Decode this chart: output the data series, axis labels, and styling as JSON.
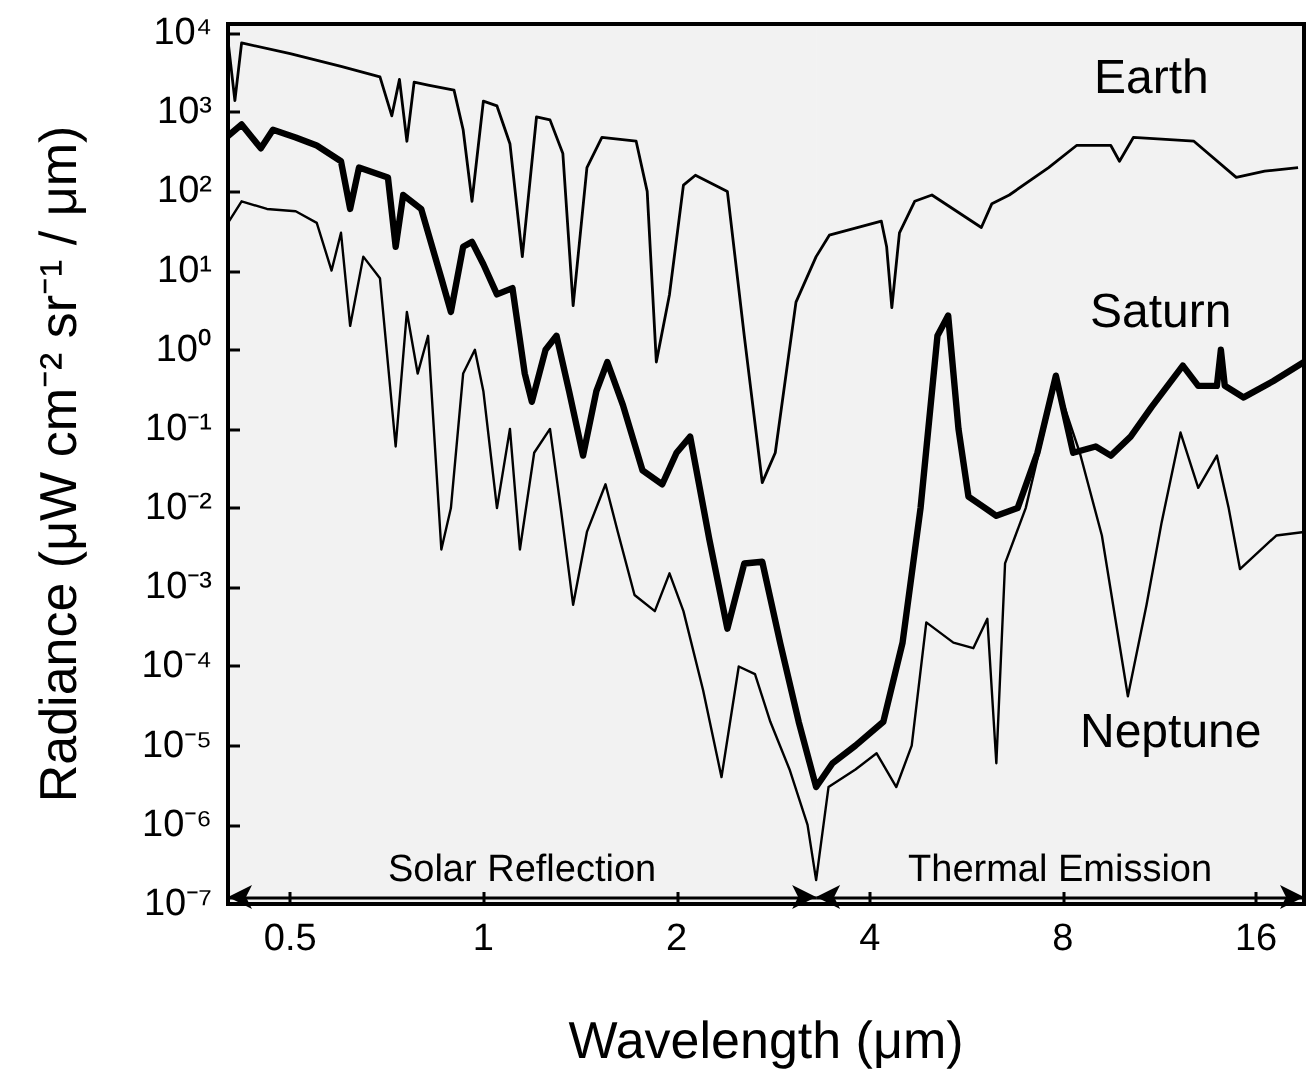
{
  "chart_data": {
    "type": "line",
    "xlabel": "Wavelength (μm)",
    "ylabel": "Radiance (μW cm⁻² sr⁻¹ / μm)",
    "log": "xy",
    "grid": false,
    "legend": false,
    "marker": "none",
    "xlim": [
      0.4,
      19
    ],
    "xticks": [
      0.5,
      1,
      2,
      4,
      8,
      16
    ],
    "ylim": [
      1e-07,
      13000
    ],
    "yticks": [
      {
        "value": 1e-07,
        "label": "10⁻⁷"
      },
      {
        "value": 1e-06,
        "label": "10⁻⁶"
      },
      {
        "value": 1e-05,
        "label": "10⁻⁵"
      },
      {
        "value": 0.0001,
        "label": "10⁻⁴"
      },
      {
        "value": 0.001,
        "label": "10⁻³"
      },
      {
        "value": 0.01,
        "label": "10⁻²"
      },
      {
        "value": 0.1,
        "label": "10⁻¹"
      },
      {
        "value": 1,
        "label": "10⁰"
      },
      {
        "value": 10,
        "label": "10¹"
      },
      {
        "value": 100,
        "label": "10²"
      },
      {
        "value": 1000,
        "label": "10³"
      },
      {
        "value": 10000,
        "label": "10⁴"
      }
    ],
    "bands": [
      {
        "axis": "x",
        "from": 0.4,
        "to": 3.3,
        "label": "Solar Reflection",
        "color": "#000000"
      },
      {
        "axis": "x",
        "from": 3.3,
        "to": 19,
        "label": "Thermal Emission",
        "color": "#000000"
      }
    ],
    "series": [
      {
        "name": "Earth",
        "color": "#000000",
        "x": [
          0.4,
          0.41,
          0.42,
          0.5,
          0.6,
          0.69,
          0.72,
          0.74,
          0.76,
          0.78,
          0.82,
          0.9,
          0.93,
          0.96,
          1.0,
          1.05,
          1.1,
          1.15,
          1.21,
          1.27,
          1.33,
          1.38,
          1.45,
          1.53,
          1.73,
          1.8,
          1.86,
          1.95,
          2.05,
          2.14,
          2.4,
          2.55,
          2.72,
          2.85,
          3.07,
          3.3,
          3.46,
          4.17,
          4.25,
          4.33,
          4.45,
          4.7,
          5.0,
          5.97,
          6.2,
          6.6,
          7.6,
          8.4,
          9.5,
          9.8,
          10.3,
          12.8,
          14.9,
          16.5,
          18.6
        ],
        "values": [
          8000,
          1400,
          7500,
          5500,
          3800,
          2800,
          900,
          2600,
          430,
          2400,
          2200,
          1900,
          600,
          75,
          1380,
          1200,
          400,
          15,
          870,
          800,
          300,
          3.6,
          200,
          480,
          430,
          100,
          0.7,
          5,
          120,
          160,
          100,
          1.5,
          0.021,
          0.05,
          4,
          15,
          28,
          42,
          20,
          3.4,
          30,
          75,
          90,
          35,
          70,
          90,
          200,
          380,
          380,
          240,
          480,
          430,
          150,
          180,
          200
        ]
      },
      {
        "name": "Saturn",
        "color": "#000000",
        "x": [
          0.4,
          0.42,
          0.45,
          0.47,
          0.51,
          0.55,
          0.6,
          0.62,
          0.64,
          0.71,
          0.73,
          0.75,
          0.8,
          0.86,
          0.89,
          0.93,
          0.96,
          1.0,
          1.05,
          1.11,
          1.16,
          1.19,
          1.25,
          1.3,
          1.36,
          1.43,
          1.5,
          1.56,
          1.65,
          1.77,
          1.9,
          2.0,
          2.1,
          2.25,
          2.4,
          2.55,
          2.72,
          2.9,
          3.1,
          3.3,
          3.5,
          3.8,
          4.2,
          4.5,
          4.8,
          5.1,
          5.3,
          5.5,
          5.7,
          6.3,
          6.8,
          7.3,
          7.8,
          8.3,
          9.0,
          9.5,
          10.2,
          11,
          12.3,
          13,
          13.9,
          14.1,
          14.3,
          15.3,
          17,
          19
        ],
        "values": [
          500,
          700,
          350,
          600,
          480,
          380,
          240,
          60,
          200,
          150,
          20,
          90,
          60,
          8,
          3,
          20,
          23,
          12,
          5,
          6,
          0.5,
          0.22,
          1,
          1.5,
          0.3,
          0.046,
          0.3,
          0.7,
          0.2,
          0.03,
          0.02,
          0.05,
          0.08,
          0.004,
          0.0003,
          0.002,
          0.0021,
          0.0002,
          2e-05,
          3e-06,
          6e-06,
          1e-05,
          2e-05,
          0.0002,
          0.01,
          1.5,
          2.7,
          0.1,
          0.014,
          0.008,
          0.01,
          0.05,
          0.47,
          0.05,
          0.06,
          0.046,
          0.08,
          0.19,
          0.63,
          0.35,
          0.35,
          1.0,
          0.35,
          0.25,
          0.4,
          0.7
        ]
      },
      {
        "name": "Neptune",
        "color": "#000000",
        "x": [
          0.4,
          0.42,
          0.46,
          0.51,
          0.55,
          0.58,
          0.6,
          0.62,
          0.65,
          0.69,
          0.73,
          0.76,
          0.79,
          0.82,
          0.86,
          0.89,
          0.93,
          0.97,
          1.0,
          1.05,
          1.1,
          1.14,
          1.2,
          1.27,
          1.32,
          1.38,
          1.45,
          1.55,
          1.62,
          1.72,
          1.85,
          1.95,
          2.05,
          2.2,
          2.35,
          2.5,
          2.65,
          2.8,
          3.0,
          3.2,
          3.3,
          3.45,
          3.8,
          4.1,
          4.4,
          4.65,
          4.9,
          5.4,
          5.8,
          6.1,
          6.3,
          6.5,
          7.0,
          7.8,
          8.5,
          9.2,
          10.1,
          10.8,
          11.4,
          12.2,
          13,
          13.9,
          14.5,
          15.1,
          17.2,
          19
        ],
        "values": [
          40,
          75,
          60,
          56,
          40,
          10,
          30,
          2,
          15,
          8,
          0.06,
          3,
          0.5,
          1.5,
          0.003,
          0.01,
          0.5,
          1,
          0.3,
          0.01,
          0.1,
          0.003,
          0.05,
          0.1,
          0.01,
          0.0006,
          0.005,
          0.02,
          0.005,
          0.0008,
          0.0005,
          0.0015,
          0.0005,
          5e-05,
          4e-06,
          0.0001,
          8e-05,
          2e-05,
          5e-06,
          1e-06,
          2e-07,
          3e-06,
          5e-06,
          8e-06,
          3e-06,
          1e-05,
          0.00036,
          0.0002,
          0.00017,
          0.0004,
          6e-06,
          0.002,
          0.01,
          0.4,
          0.05,
          0.0045,
          4.2e-05,
          0.0006,
          0.0066,
          0.09,
          0.018,
          0.046,
          0.01,
          0.0017,
          0.0045,
          0.005
        ]
      }
    ]
  }
}
